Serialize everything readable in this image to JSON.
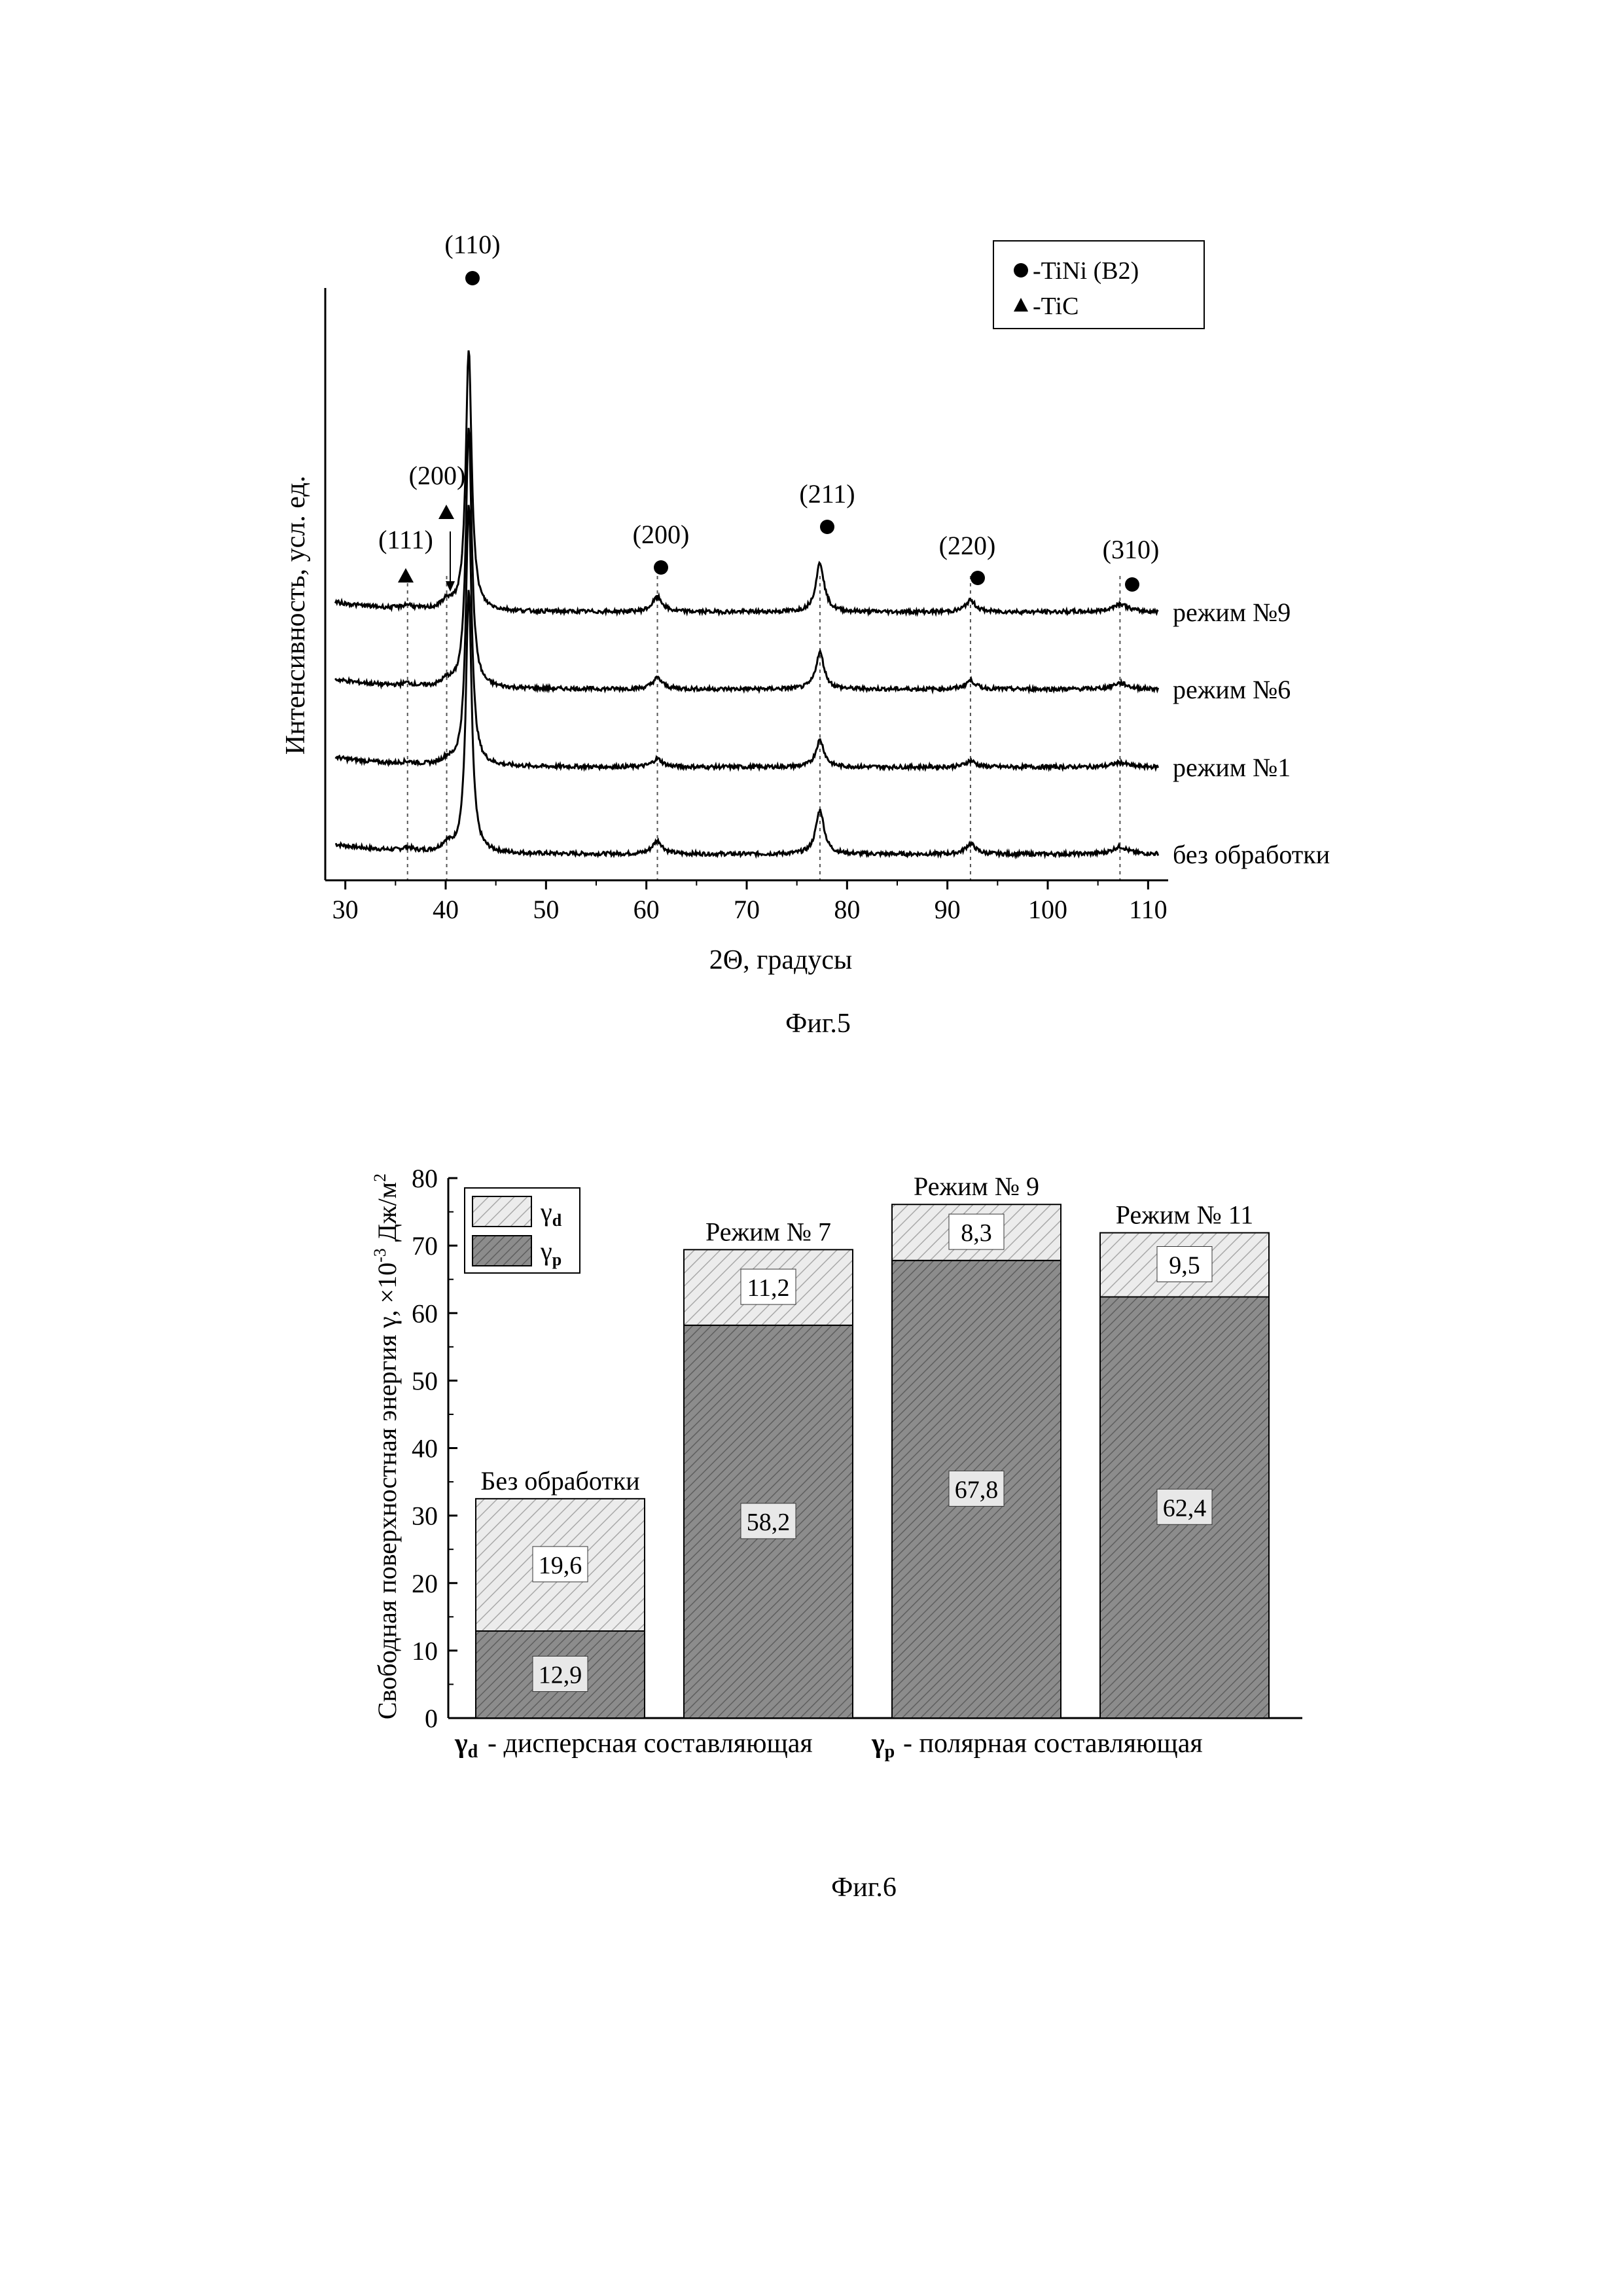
{
  "figure5": {
    "caption": "Фиг.5",
    "chart_data": {
      "type": "line",
      "xlabel": "2Θ, градусы",
      "ylabel": "Интенсивность, усл. ед.",
      "xlim": [
        28,
        112
      ],
      "xticks": [
        30,
        40,
        50,
        60,
        70,
        80,
        90,
        100,
        110
      ],
      "legend": {
        "placement": "top-right",
        "entries": [
          {
            "marker": "circle",
            "label": "-TiNi (B2)"
          },
          {
            "marker": "triangle",
            "label": "-TiC"
          }
        ]
      },
      "series": [
        {
          "name": "режим №9",
          "baseline": 3,
          "peak_scale": 1.0
        },
        {
          "name": "режим №6",
          "baseline": 2,
          "peak_scale": 0.75
        },
        {
          "name": "режим №1",
          "baseline": 1,
          "peak_scale": 0.55
        },
        {
          "name": "без обработки",
          "baseline": 0,
          "peak_scale": 0.9
        }
      ],
      "peaks": [
        {
          "x": 36.2,
          "height": 0.12,
          "width": 0.6,
          "phase": "TiC",
          "label": "(111)"
        },
        {
          "x": 40.1,
          "height": 0.25,
          "width": 0.6,
          "phase": "TiC",
          "label": "(200)"
        },
        {
          "x": 42.3,
          "height": 8.0,
          "width": 0.35,
          "phase": "TiNi",
          "label": "(110)"
        },
        {
          "x": 61.1,
          "height": 0.45,
          "width": 0.6,
          "phase": "TiNi",
          "label": "(200)"
        },
        {
          "x": 77.3,
          "height": 1.5,
          "width": 0.5,
          "phase": "TiNi",
          "label": "(211)"
        },
        {
          "x": 92.3,
          "height": 0.35,
          "width": 0.6,
          "phase": "TiNi",
          "label": "(220)"
        },
        {
          "x": 107.2,
          "height": 0.25,
          "width": 0.9,
          "phase": "TiNi",
          "label": "(310)"
        }
      ]
    }
  },
  "figure6": {
    "caption": "Фиг.6",
    "chart_data": {
      "type": "bar",
      "stacked": true,
      "ylabel": "Свободная поверхностная энергия γ, ×10⁻³ Дж/м²",
      "ylim": [
        0,
        80
      ],
      "yticks": [
        0,
        10,
        20,
        30,
        40,
        50,
        60,
        70,
        80
      ],
      "categories": [
        "Без обработки",
        "Режим № 7",
        "Режим № 9",
        "Режим № 11"
      ],
      "series": [
        {
          "name": "γp",
          "color": "#808080",
          "values": [
            12.9,
            58.2,
            67.8,
            62.4
          ],
          "labels": [
            "12,9",
            "58,2",
            "67,8",
            "62,4"
          ]
        },
        {
          "name": "γd",
          "color": "#e6e6e6",
          "values": [
            19.6,
            11.2,
            8.3,
            9.5
          ],
          "labels": [
            "19,6",
            "11,2",
            "8,3",
            "9,5"
          ]
        }
      ],
      "legend": {
        "placement": "top-left",
        "entries": [
          "γd",
          "γp"
        ]
      },
      "footnotes": [
        {
          "symbol": "γd",
          "text": "- дисперсная составляющая"
        },
        {
          "symbol": "γp",
          "text": "- полярная составляющая"
        }
      ]
    }
  }
}
